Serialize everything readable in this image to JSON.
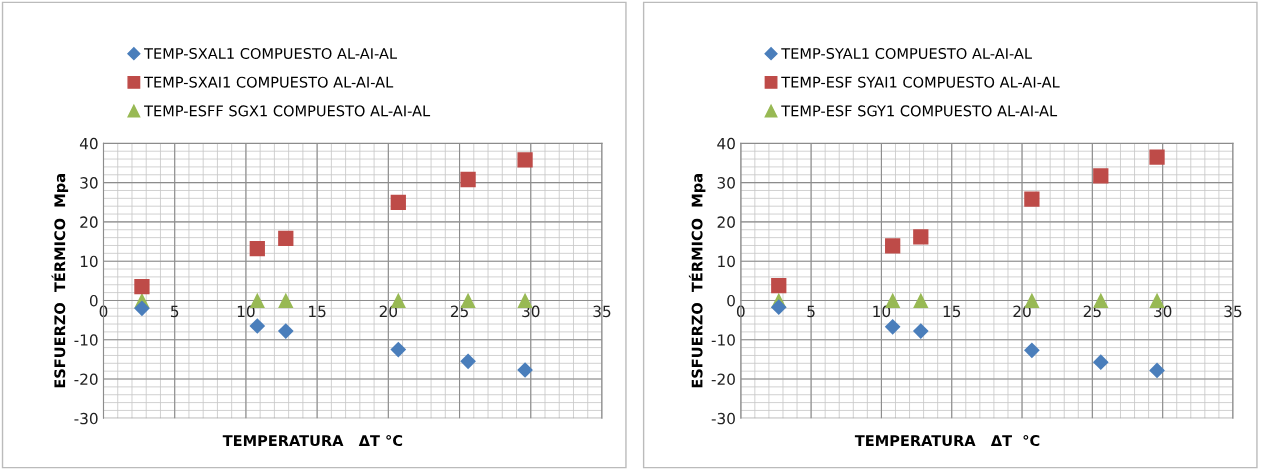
{
  "chart_data": [
    {
      "type": "scatter",
      "xlabel": "TEMPERATURA   ΔT °C",
      "ylabel": "ESFUERZO  TÉRMICO  Mpa",
      "xlim": [
        0,
        35
      ],
      "xticks": [
        0,
        5,
        10,
        15,
        20,
        25,
        30,
        35
      ],
      "ylim": [
        -30,
        40
      ],
      "yticks": [
        -30,
        -20,
        -10,
        0,
        10,
        20,
        30,
        40
      ],
      "grid": true,
      "legend": "top",
      "series": [
        {
          "name": "TEMP-SXAL1 COMPUESTO AL-AI-AL",
          "color": "#4a7ebb",
          "marker": "diamond",
          "x": [
            2.7,
            10.8,
            12.8,
            20.7,
            25.6,
            29.6
          ],
          "values": [
            -2,
            -6.5,
            -7.8,
            -12.5,
            -15.5,
            -17.7
          ]
        },
        {
          "name": "TEMP-SXAI1 COMPUESTO AL-AI-AL",
          "color": "#be4b48",
          "marker": "square",
          "x": [
            2.7,
            10.8,
            12.8,
            20.7,
            25.6,
            29.6
          ],
          "values": [
            3.5,
            13.2,
            15.8,
            25,
            30.8,
            35.8
          ]
        },
        {
          "name": "TEMP-ESFF SGX1 COMPUESTO AL-AI-AL",
          "color": "#98b954",
          "marker": "triangle",
          "x": [
            2.7,
            10.8,
            12.8,
            20.7,
            25.6,
            29.6
          ],
          "values": [
            0,
            0,
            0,
            0,
            0,
            0
          ]
        }
      ]
    },
    {
      "type": "scatter",
      "xlabel": "TEMPERATURA   ΔT  °C",
      "ylabel": "ESFUERZO  TÉRMICO  Mpa",
      "xlim": [
        0,
        35
      ],
      "xticks": [
        0,
        5,
        10,
        15,
        20,
        25,
        30,
        35
      ],
      "ylim": [
        -30,
        40
      ],
      "yticks": [
        -30,
        -20,
        -10,
        0,
        10,
        20,
        30,
        40
      ],
      "grid": true,
      "legend": "top",
      "series": [
        {
          "name": "TEMP-SYAL1 COMPUESTO AL-AI-AL",
          "color": "#4a7ebb",
          "marker": "diamond",
          "x": [
            2.7,
            10.8,
            12.8,
            20.7,
            25.6,
            29.6
          ],
          "values": [
            -1.7,
            -6.7,
            -7.8,
            -12.7,
            -15.7,
            -17.8
          ]
        },
        {
          "name": "TEMP-ESF SYAI1 COMPUESTO AL-AI-AL",
          "color": "#be4b48",
          "marker": "square",
          "x": [
            2.7,
            10.8,
            12.8,
            20.7,
            25.6,
            29.6
          ],
          "values": [
            3.8,
            13.9,
            16.2,
            25.8,
            31.7,
            36.5
          ]
        },
        {
          "name": "TEMP-ESF SGY1 COMPUESTO AL-AI-AL",
          "color": "#98b954",
          "marker": "triangle",
          "x": [
            2.7,
            10.8,
            12.8,
            20.7,
            25.6,
            29.6
          ],
          "values": [
            0,
            0,
            0,
            0,
            0,
            0
          ]
        }
      ]
    }
  ]
}
